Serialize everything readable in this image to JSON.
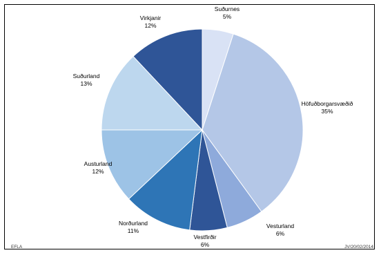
{
  "chart_data": {
    "type": "pie",
    "start_angle_deg": 0,
    "direction": "clockwise",
    "slices": [
      {
        "label": "Suðurnes",
        "value": 5,
        "pct_label": "5%",
        "color": "#d9e2f5"
      },
      {
        "label": "Höfuðborgarsvæðið",
        "value": 35,
        "pct_label": "35%",
        "color": "#b4c7e7"
      },
      {
        "label": "Vesturland",
        "value": 6,
        "pct_label": "6%",
        "color": "#8eaadb"
      },
      {
        "label": "Vestfirðir",
        "value": 6,
        "pct_label": "6%",
        "color": "#2f5597"
      },
      {
        "label": "Norðurland",
        "value": 11,
        "pct_label": "11%",
        "color": "#2e75b6"
      },
      {
        "label": "Austurland",
        "value": 12,
        "pct_label": "12%",
        "color": "#9dc3e6"
      },
      {
        "label": "Suðurland",
        "value": 13,
        "pct_label": "13%",
        "color": "#bdd7ee"
      },
      {
        "label": "Virkjanir",
        "value": 12,
        "pct_label": "12%",
        "color": "#2f5597"
      }
    ]
  },
  "footer": {
    "left": "EFLA",
    "right": "JV/20/02/2014"
  }
}
